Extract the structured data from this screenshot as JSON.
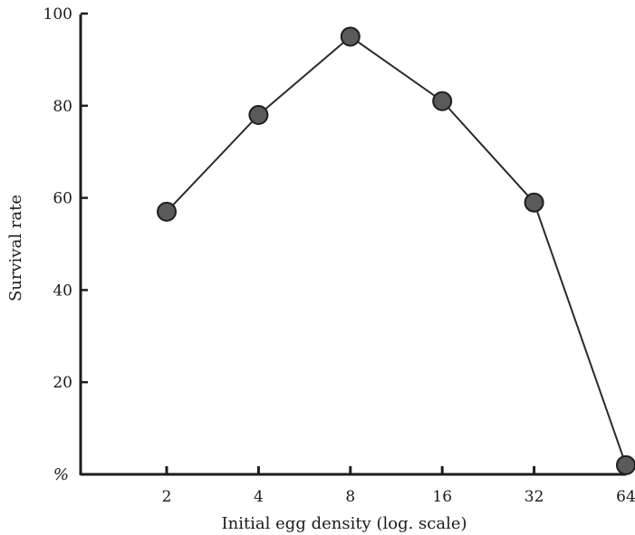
{
  "chart_data": {
    "type": "line",
    "x": [
      2,
      4,
      8,
      16,
      32,
      64
    ],
    "series": [
      {
        "values": [
          57,
          78,
          95,
          81,
          59,
          2
        ]
      }
    ],
    "x_tick_labels": [
      "2",
      "4",
      "8",
      "16",
      "32",
      "64"
    ],
    "y_tick_labels": [
      "20",
      "40",
      "60",
      "80",
      "100"
    ],
    "y_ticks": [
      20,
      40,
      60,
      80,
      100
    ],
    "y_unit_label": "%",
    "xlabel": "Initial egg density (log. scale)",
    "ylabel": "Survival rate",
    "x_scale": "log2",
    "ylim": [
      0,
      100
    ],
    "grid": false,
    "legend": "none",
    "colors": {
      "line": "#2b2b2b",
      "marker_fill": "#5a5a5a",
      "marker_stroke": "#1e1e1e",
      "axis": "#1e1e1e"
    }
  }
}
